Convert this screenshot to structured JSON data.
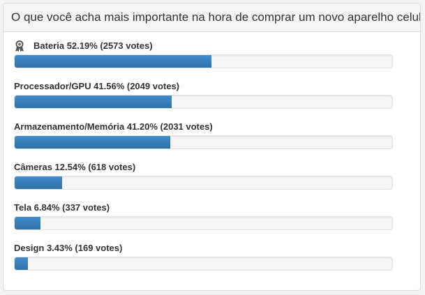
{
  "poll": {
    "question": "O que você acha mais importante na hora de comprar um novo aparelho celular?",
    "options": [
      {
        "label": "Bateria 52.19% (2573 votes)",
        "percent": 52.19,
        "winner": true
      },
      {
        "label": "Processador/GPU 41.56% (2049 votes)",
        "percent": 41.56,
        "winner": false
      },
      {
        "label": "Armazenamento/Memória 41.20% (2031 votes)",
        "percent": 41.2,
        "winner": false
      },
      {
        "label": "Câmeras 12.54% (618 votes)",
        "percent": 12.54,
        "winner": false
      },
      {
        "label": "Tela 6.84% (337 votes)",
        "percent": 6.84,
        "winner": false
      },
      {
        "label": "Design 3.43% (169 votes)",
        "percent": 3.43,
        "winner": false
      }
    ]
  },
  "colors": {
    "bar": "#337ab7",
    "track": "#f5f5f5"
  },
  "icons": {
    "winner": "award-ribbon-icon"
  }
}
